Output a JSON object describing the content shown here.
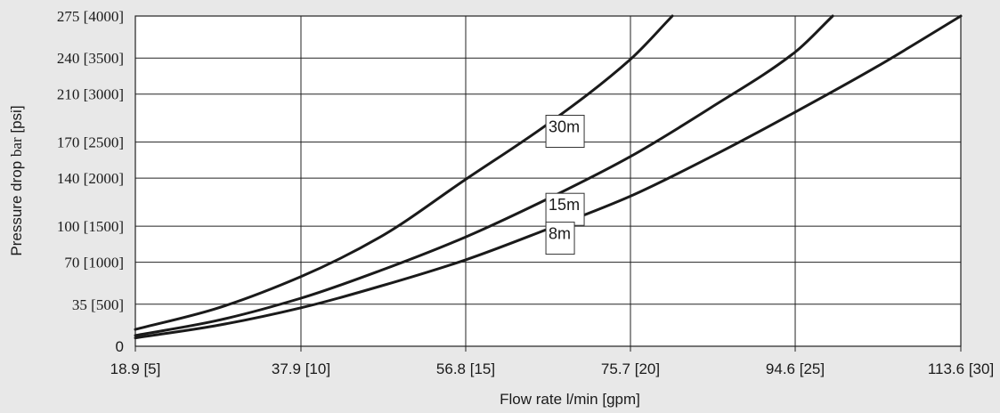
{
  "chart_data": {
    "type": "line",
    "xlabel": "Flow rate l/min [gpm]",
    "ylabel_parts": [
      "Pressure drop ",
      "bar",
      " [psi]"
    ],
    "x_ticks": [
      {
        "value": 18.9,
        "label": "18.9 [5]"
      },
      {
        "value": 37.9,
        "label": "37.9 [10]"
      },
      {
        "value": 56.8,
        "label": "56.8 [15]"
      },
      {
        "value": 75.7,
        "label": "75.7 [20]"
      },
      {
        "value": 94.6,
        "label": "94.6 [25]"
      },
      {
        "value": 113.6,
        "label": "113.6 [30]"
      }
    ],
    "y_ticks": [
      {
        "value": 0,
        "label": "0"
      },
      {
        "value": 35,
        "label": "35 [500]"
      },
      {
        "value": 70,
        "label": "70 [1000]"
      },
      {
        "value": 100,
        "label": "100 [1500]"
      },
      {
        "value": 140,
        "label": "140 [2000]"
      },
      {
        "value": 170,
        "label": "170 [2500]"
      },
      {
        "value": 210,
        "label": "210 [3000]"
      },
      {
        "value": 240,
        "label": "240 [3500]"
      },
      {
        "value": 275,
        "label": "275 [4000]"
      }
    ],
    "xlim": [
      18.9,
      113.6
    ],
    "ylim": [
      0,
      275
    ],
    "grid": true,
    "series": [
      {
        "name": "30m",
        "x": [
          18.9,
          28,
          37.9,
          47,
          56.8,
          66,
          75.7,
          80.5
        ],
        "y": [
          14,
          31,
          58,
          91,
          139,
          184,
          239,
          275
        ]
      },
      {
        "name": "15m",
        "x": [
          18.9,
          28,
          37.9,
          47,
          56.8,
          66,
          75.7,
          85,
          94.6,
          98.9
        ],
        "y": [
          9,
          21,
          40,
          63,
          91,
          122,
          158,
          199,
          245,
          275
        ]
      },
      {
        "name": "8m",
        "x": [
          18.9,
          28,
          37.9,
          47,
          56.8,
          66,
          75.7,
          85,
          94.6,
          104,
          113.6
        ],
        "y": [
          7,
          17,
          32,
          50,
          72,
          97,
          125,
          158,
          195,
          233,
          275
        ]
      }
    ],
    "series_labels": [
      {
        "text": "30m",
        "x": 66,
        "y": 179
      },
      {
        "text": "15m",
        "x": 66,
        "y": 114
      },
      {
        "text": "8m",
        "x": 66,
        "y": 90
      }
    ]
  }
}
